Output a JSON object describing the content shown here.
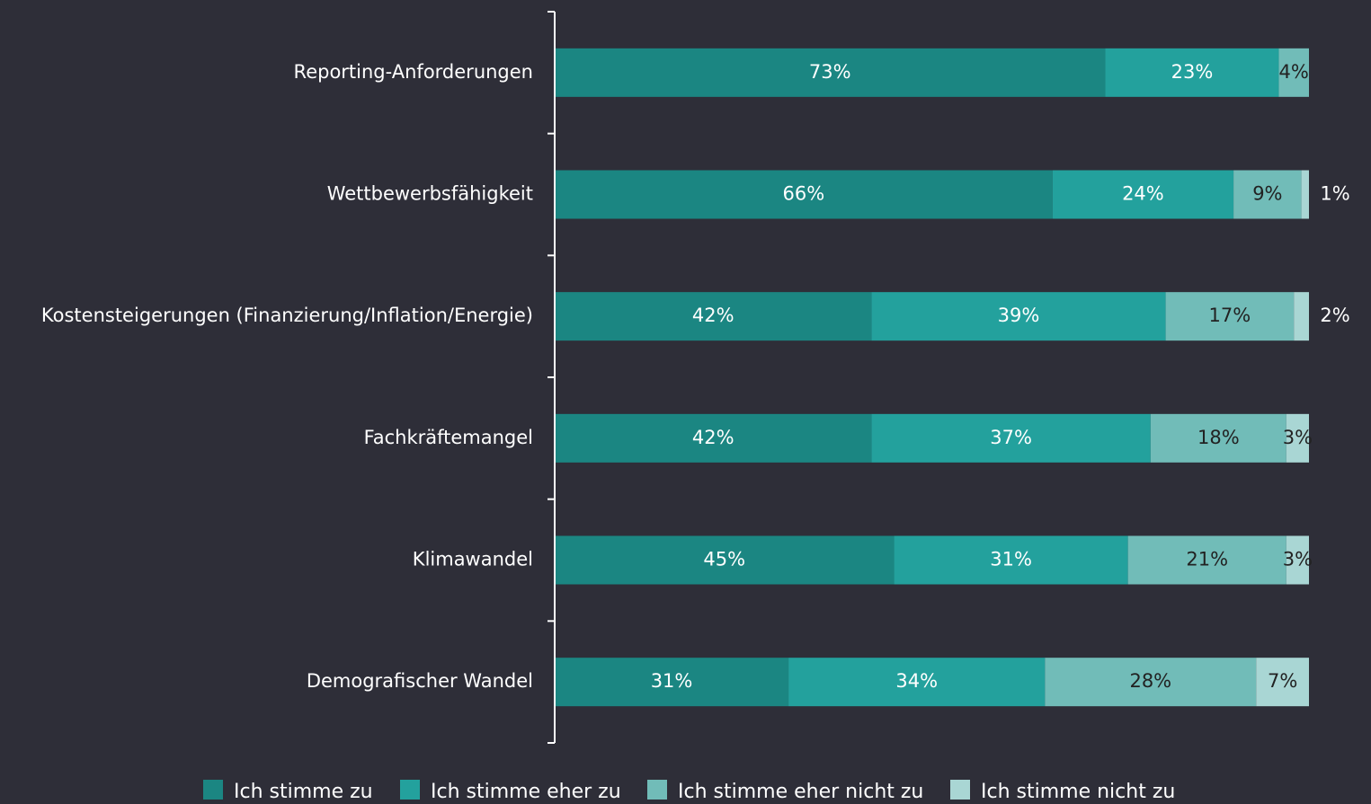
{
  "chart_data": {
    "type": "stacked-bar-horizontal",
    "categories": [
      "Reporting-Anforderungen",
      "Wettbewerbsfähigkeit",
      "Kostensteigerungen (Finanzierung/Inflation/Energie)",
      "Fachkräftemangel",
      "Klimawandel",
      "Demografischer Wandel"
    ],
    "series": [
      {
        "name": "Ich stimme zu",
        "color": "#1b8682",
        "values": [
          73,
          66,
          42,
          42,
          45,
          31
        ],
        "value_labels": [
          "73%",
          "66%",
          "42%",
          "42%",
          "45%",
          "31%"
        ]
      },
      {
        "name": "Ich stimme eher zu",
        "color": "#23a19d",
        "values": [
          23,
          24,
          39,
          37,
          31,
          34
        ],
        "value_labels": [
          "23%",
          "24%",
          "39%",
          "37%",
          "31%",
          "34%"
        ]
      },
      {
        "name": "Ich stimme eher nicht zu",
        "color": "#71bcb8",
        "values": [
          4,
          9,
          17,
          18,
          21,
          28
        ],
        "value_labels": [
          "4%",
          "9%",
          "17%",
          "18%",
          "21%",
          "28%"
        ]
      },
      {
        "name": "Ich stimme nicht zu",
        "color": "#a9d6d4",
        "values": [
          null,
          1,
          2,
          3,
          3,
          7
        ],
        "value_labels": [
          null,
          "1%",
          "2%",
          "3%",
          "3%",
          "7%"
        ]
      }
    ],
    "xlim": [
      0,
      100
    ]
  }
}
